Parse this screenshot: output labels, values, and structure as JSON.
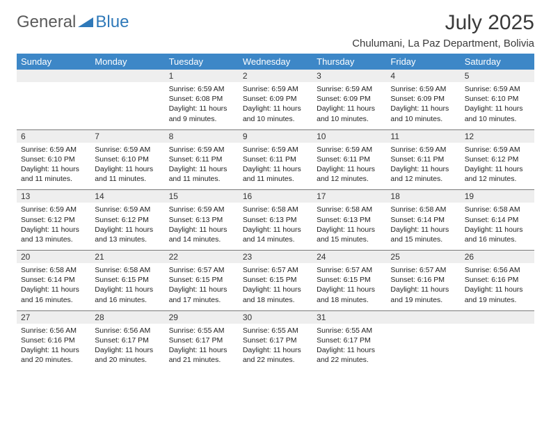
{
  "brand": {
    "part1": "General",
    "part2": "Blue"
  },
  "title": "July 2025",
  "location": "Chulumani, La Paz Department, Bolivia",
  "colors": {
    "header_bg": "#3d87c7",
    "header_fg": "#ffffff",
    "numrow_bg": "#eeeeee",
    "rule": "#7a7a7a",
    "brand_blue": "#2f79b9",
    "text": "#222222"
  },
  "day_names": [
    "Sunday",
    "Monday",
    "Tuesday",
    "Wednesday",
    "Thursday",
    "Friday",
    "Saturday"
  ],
  "weeks": [
    {
      "nums": [
        "",
        "",
        "1",
        "2",
        "3",
        "4",
        "5"
      ],
      "cells": [
        null,
        null,
        {
          "sunrise": "Sunrise: 6:59 AM",
          "sunset": "Sunset: 6:08 PM",
          "d1": "Daylight: 11 hours",
          "d2": "and 9 minutes."
        },
        {
          "sunrise": "Sunrise: 6:59 AM",
          "sunset": "Sunset: 6:09 PM",
          "d1": "Daylight: 11 hours",
          "d2": "and 10 minutes."
        },
        {
          "sunrise": "Sunrise: 6:59 AM",
          "sunset": "Sunset: 6:09 PM",
          "d1": "Daylight: 11 hours",
          "d2": "and 10 minutes."
        },
        {
          "sunrise": "Sunrise: 6:59 AM",
          "sunset": "Sunset: 6:09 PM",
          "d1": "Daylight: 11 hours",
          "d2": "and 10 minutes."
        },
        {
          "sunrise": "Sunrise: 6:59 AM",
          "sunset": "Sunset: 6:10 PM",
          "d1": "Daylight: 11 hours",
          "d2": "and 10 minutes."
        }
      ]
    },
    {
      "nums": [
        "6",
        "7",
        "8",
        "9",
        "10",
        "11",
        "12"
      ],
      "cells": [
        {
          "sunrise": "Sunrise: 6:59 AM",
          "sunset": "Sunset: 6:10 PM",
          "d1": "Daylight: 11 hours",
          "d2": "and 11 minutes."
        },
        {
          "sunrise": "Sunrise: 6:59 AM",
          "sunset": "Sunset: 6:10 PM",
          "d1": "Daylight: 11 hours",
          "d2": "and 11 minutes."
        },
        {
          "sunrise": "Sunrise: 6:59 AM",
          "sunset": "Sunset: 6:11 PM",
          "d1": "Daylight: 11 hours",
          "d2": "and 11 minutes."
        },
        {
          "sunrise": "Sunrise: 6:59 AM",
          "sunset": "Sunset: 6:11 PM",
          "d1": "Daylight: 11 hours",
          "d2": "and 11 minutes."
        },
        {
          "sunrise": "Sunrise: 6:59 AM",
          "sunset": "Sunset: 6:11 PM",
          "d1": "Daylight: 11 hours",
          "d2": "and 12 minutes."
        },
        {
          "sunrise": "Sunrise: 6:59 AM",
          "sunset": "Sunset: 6:11 PM",
          "d1": "Daylight: 11 hours",
          "d2": "and 12 minutes."
        },
        {
          "sunrise": "Sunrise: 6:59 AM",
          "sunset": "Sunset: 6:12 PM",
          "d1": "Daylight: 11 hours",
          "d2": "and 12 minutes."
        }
      ]
    },
    {
      "nums": [
        "13",
        "14",
        "15",
        "16",
        "17",
        "18",
        "19"
      ],
      "cells": [
        {
          "sunrise": "Sunrise: 6:59 AM",
          "sunset": "Sunset: 6:12 PM",
          "d1": "Daylight: 11 hours",
          "d2": "and 13 minutes."
        },
        {
          "sunrise": "Sunrise: 6:59 AM",
          "sunset": "Sunset: 6:12 PM",
          "d1": "Daylight: 11 hours",
          "d2": "and 13 minutes."
        },
        {
          "sunrise": "Sunrise: 6:59 AM",
          "sunset": "Sunset: 6:13 PM",
          "d1": "Daylight: 11 hours",
          "d2": "and 14 minutes."
        },
        {
          "sunrise": "Sunrise: 6:58 AM",
          "sunset": "Sunset: 6:13 PM",
          "d1": "Daylight: 11 hours",
          "d2": "and 14 minutes."
        },
        {
          "sunrise": "Sunrise: 6:58 AM",
          "sunset": "Sunset: 6:13 PM",
          "d1": "Daylight: 11 hours",
          "d2": "and 15 minutes."
        },
        {
          "sunrise": "Sunrise: 6:58 AM",
          "sunset": "Sunset: 6:14 PM",
          "d1": "Daylight: 11 hours",
          "d2": "and 15 minutes."
        },
        {
          "sunrise": "Sunrise: 6:58 AM",
          "sunset": "Sunset: 6:14 PM",
          "d1": "Daylight: 11 hours",
          "d2": "and 16 minutes."
        }
      ]
    },
    {
      "nums": [
        "20",
        "21",
        "22",
        "23",
        "24",
        "25",
        "26"
      ],
      "cells": [
        {
          "sunrise": "Sunrise: 6:58 AM",
          "sunset": "Sunset: 6:14 PM",
          "d1": "Daylight: 11 hours",
          "d2": "and 16 minutes."
        },
        {
          "sunrise": "Sunrise: 6:58 AM",
          "sunset": "Sunset: 6:15 PM",
          "d1": "Daylight: 11 hours",
          "d2": "and 16 minutes."
        },
        {
          "sunrise": "Sunrise: 6:57 AM",
          "sunset": "Sunset: 6:15 PM",
          "d1": "Daylight: 11 hours",
          "d2": "and 17 minutes."
        },
        {
          "sunrise": "Sunrise: 6:57 AM",
          "sunset": "Sunset: 6:15 PM",
          "d1": "Daylight: 11 hours",
          "d2": "and 18 minutes."
        },
        {
          "sunrise": "Sunrise: 6:57 AM",
          "sunset": "Sunset: 6:15 PM",
          "d1": "Daylight: 11 hours",
          "d2": "and 18 minutes."
        },
        {
          "sunrise": "Sunrise: 6:57 AM",
          "sunset": "Sunset: 6:16 PM",
          "d1": "Daylight: 11 hours",
          "d2": "and 19 minutes."
        },
        {
          "sunrise": "Sunrise: 6:56 AM",
          "sunset": "Sunset: 6:16 PM",
          "d1": "Daylight: 11 hours",
          "d2": "and 19 minutes."
        }
      ]
    },
    {
      "nums": [
        "27",
        "28",
        "29",
        "30",
        "31",
        "",
        ""
      ],
      "cells": [
        {
          "sunrise": "Sunrise: 6:56 AM",
          "sunset": "Sunset: 6:16 PM",
          "d1": "Daylight: 11 hours",
          "d2": "and 20 minutes."
        },
        {
          "sunrise": "Sunrise: 6:56 AM",
          "sunset": "Sunset: 6:17 PM",
          "d1": "Daylight: 11 hours",
          "d2": "and 20 minutes."
        },
        {
          "sunrise": "Sunrise: 6:55 AM",
          "sunset": "Sunset: 6:17 PM",
          "d1": "Daylight: 11 hours",
          "d2": "and 21 minutes."
        },
        {
          "sunrise": "Sunrise: 6:55 AM",
          "sunset": "Sunset: 6:17 PM",
          "d1": "Daylight: 11 hours",
          "d2": "and 22 minutes."
        },
        {
          "sunrise": "Sunrise: 6:55 AM",
          "sunset": "Sunset: 6:17 PM",
          "d1": "Daylight: 11 hours",
          "d2": "and 22 minutes."
        },
        null,
        null
      ]
    }
  ]
}
